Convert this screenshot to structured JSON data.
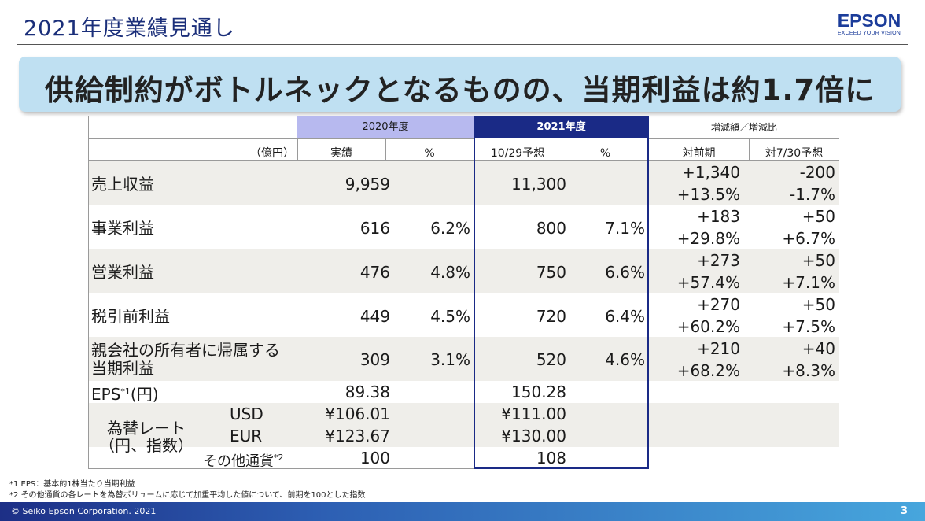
{
  "header": {
    "title": "2021年度業績見通し",
    "logo_word": "EPSON",
    "logo_tagline": "EXCEED YOUR VISION"
  },
  "headline": "供給制約がボトルネックとなるものの、当期利益は約1.7倍に",
  "table": {
    "unit": "（億円）",
    "group_2020": "2020年度",
    "group_2021": "2021年度",
    "group_change": "増減額／増減比",
    "col_actual": "実績",
    "col_pct_2020": "%",
    "col_forecast": "10/29予想",
    "col_pct_2021": "%",
    "col_vs_prev": "対前期",
    "col_vs_730": "対7/30予想",
    "rows": [
      {
        "label": "売上収益",
        "actual": "9,959",
        "pct20": "",
        "forecast": "11,300",
        "pct21": "",
        "vs_prev_amt": "+1,340",
        "vs_prev_pct": "+13.5%",
        "vs_730_amt": "-200",
        "vs_730_pct": "-1.7%"
      },
      {
        "label": "事業利益",
        "actual": "616",
        "pct20": "6.2%",
        "forecast": "800",
        "pct21": "7.1%",
        "vs_prev_amt": "+183",
        "vs_prev_pct": "+29.8%",
        "vs_730_amt": "+50",
        "vs_730_pct": "+6.7%"
      },
      {
        "label": "営業利益",
        "actual": "476",
        "pct20": "4.8%",
        "forecast": "750",
        "pct21": "6.6%",
        "vs_prev_amt": "+273",
        "vs_prev_pct": "+57.4%",
        "vs_730_amt": "+50",
        "vs_730_pct": "+7.1%"
      },
      {
        "label": "税引前利益",
        "actual": "449",
        "pct20": "4.5%",
        "forecast": "720",
        "pct21": "6.4%",
        "vs_prev_amt": "+270",
        "vs_prev_pct": "+60.2%",
        "vs_730_amt": "+50",
        "vs_730_pct": "+7.5%"
      },
      {
        "label_line1": "親会社の所有者に帰属する",
        "label_line2": "当期利益",
        "actual": "309",
        "pct20": "3.1%",
        "forecast": "520",
        "pct21": "4.6%",
        "vs_prev_amt": "+210",
        "vs_prev_pct": "+68.2%",
        "vs_730_amt": "+40",
        "vs_730_pct": "+8.3%"
      }
    ],
    "eps": {
      "label": "EPS",
      "sup": "*1",
      "unit": "(円)",
      "actual": "89.38",
      "forecast": "150.28"
    },
    "fx": {
      "label_line1": "為替レート",
      "label_line2": "（円、指数）",
      "usd": {
        "label": "USD",
        "actual": "¥106.01",
        "forecast": "¥111.00"
      },
      "eur": {
        "label": "EUR",
        "actual": "¥123.67",
        "forecast": "¥130.00"
      },
      "other": {
        "label": "その他通貨",
        "sup": "*2",
        "actual": "100",
        "forecast": "108"
      }
    }
  },
  "notes": {
    "n1": "*1 EPS：基本的1株当たり当期利益",
    "n2": "*2 その他通貨の各レートを為替ボリュームに応じて加重平均した値について、前期を100とした指数"
  },
  "footer": {
    "copyright": "© Seiko Epson Corporation. 2021",
    "page": "3"
  }
}
